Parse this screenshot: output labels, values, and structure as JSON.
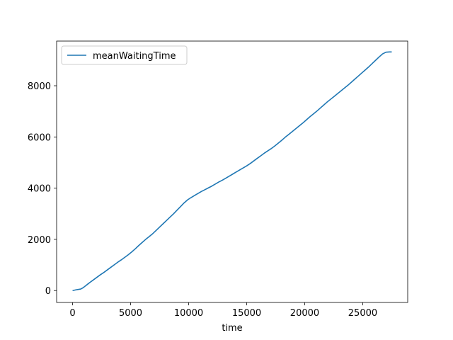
{
  "chart_data": {
    "type": "line",
    "title": "",
    "xlabel": "time",
    "ylabel": "",
    "xlim": [
      -1375,
      28875
    ],
    "ylim": [
      -464,
      9744
    ],
    "x_ticks": [
      0,
      5000,
      10000,
      15000,
      20000,
      25000
    ],
    "y_ticks": [
      0,
      2000,
      4000,
      6000,
      8000
    ],
    "grid": false,
    "legend": {
      "position": "top-left"
    },
    "series": [
      {
        "name": "meanWaitingTime",
        "color": "#1f77b4",
        "x": [
          0,
          300,
          700,
          900,
          1100,
          1300,
          1500,
          1800,
          2100,
          2400,
          2700,
          3000,
          3300,
          3600,
          3900,
          4200,
          4500,
          4800,
          5100,
          5400,
          5700,
          6000,
          6300,
          6600,
          6900,
          7200,
          7500,
          7800,
          8100,
          8400,
          8700,
          9000,
          9300,
          9600,
          9900,
          10200,
          10500,
          10800,
          11100,
          11400,
          11700,
          12000,
          12300,
          12600,
          12900,
          13200,
          13500,
          13800,
          14100,
          14400,
          14700,
          15000,
          15300,
          15600,
          15900,
          16200,
          16500,
          16800,
          17100,
          17400,
          17700,
          18000,
          18300,
          18600,
          18900,
          19200,
          19500,
          19800,
          20100,
          20400,
          20700,
          21000,
          21300,
          21600,
          21900,
          22200,
          22500,
          22800,
          23100,
          23400,
          23700,
          24000,
          24300,
          24600,
          24900,
          25200,
          25500,
          25800,
          26100,
          26400,
          26700,
          27000,
          27300,
          27500
        ],
        "y": [
          0,
          30,
          60,
          110,
          180,
          250,
          320,
          420,
          520,
          620,
          710,
          810,
          910,
          1010,
          1110,
          1200,
          1300,
          1400,
          1510,
          1630,
          1760,
          1880,
          2000,
          2110,
          2220,
          2350,
          2480,
          2610,
          2740,
          2870,
          3000,
          3140,
          3280,
          3420,
          3540,
          3630,
          3710,
          3790,
          3870,
          3940,
          4010,
          4080,
          4160,
          4240,
          4310,
          4390,
          4470,
          4550,
          4630,
          4710,
          4790,
          4870,
          4960,
          5060,
          5160,
          5260,
          5360,
          5450,
          5540,
          5640,
          5750,
          5860,
          5980,
          6090,
          6200,
          6310,
          6420,
          6530,
          6650,
          6770,
          6880,
          6990,
          7110,
          7230,
          7350,
          7460,
          7570,
          7680,
          7790,
          7900,
          8010,
          8130,
          8250,
          8370,
          8490,
          8610,
          8730,
          8860,
          8990,
          9120,
          9240,
          9310,
          9320,
          9320
        ]
      }
    ]
  }
}
